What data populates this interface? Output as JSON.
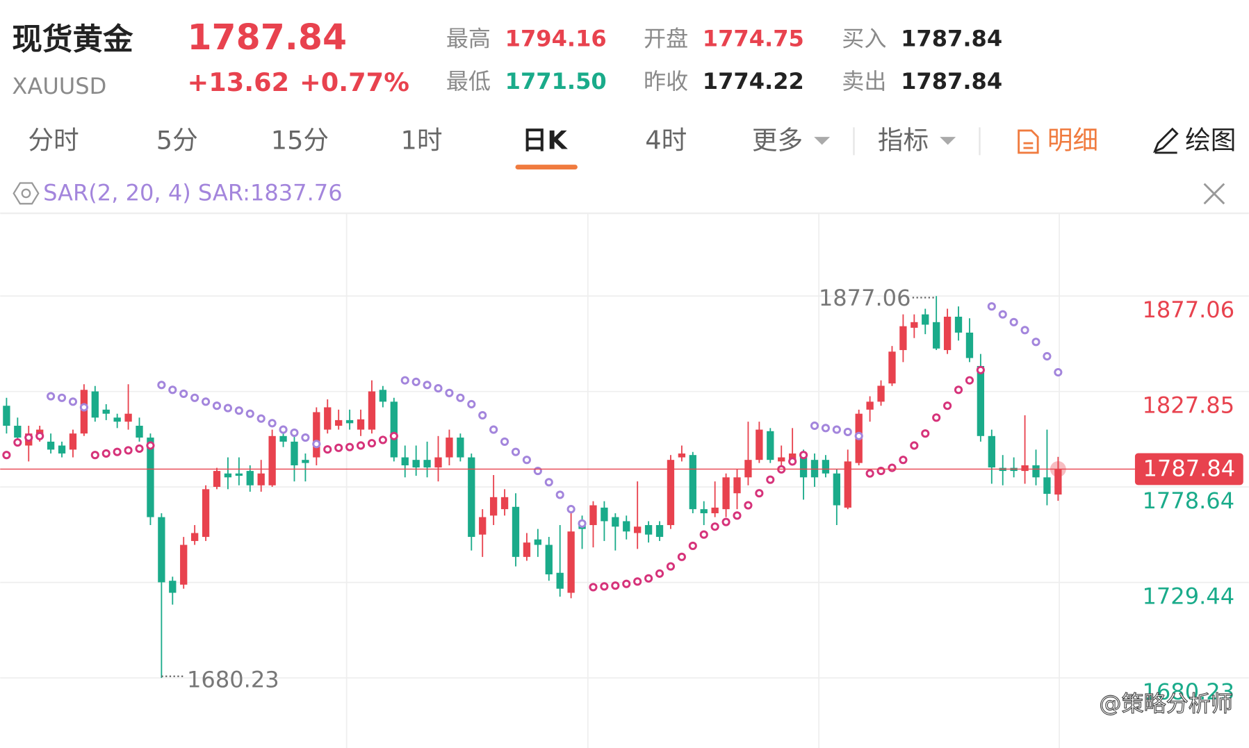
{
  "header": {
    "name": "现货黄金",
    "symbol": "XAUUSD",
    "price": "1787.84",
    "change": "+13.62",
    "change_pct": "+0.77%",
    "stats": [
      {
        "label": "最高",
        "value": "1794.16"
      },
      {
        "label": "最低",
        "value": "1771.50"
      },
      {
        "label": "开盘",
        "value": "1774.75"
      },
      {
        "label": "昨收",
        "value": "1774.22"
      },
      {
        "label": "买入",
        "value": "1787.84"
      },
      {
        "label": "卖出",
        "value": "1787.84"
      }
    ]
  },
  "tabs": [
    "分时",
    "5分",
    "15分",
    "1时",
    "日K",
    "4时",
    "更多",
    "指标",
    "明细",
    "绘图"
  ],
  "indicator": "SAR(2, 20, 4) SAR:1837.76",
  "watermark": "@策略分析师",
  "chart_data": {
    "type": "candlestick",
    "open": [
      1820.5,
      1810.2,
      1800.0,
      1804.1,
      1802.0,
      1800.0,
      1797.9,
      1806.2,
      1827.9,
      1818.5,
      1814.4,
      1812.3,
      1810.2,
      1804.1,
      1763.1,
      1730.3,
      1728.3,
      1750.8,
      1752.9,
      1778.7,
      1785.6,
      1785.6,
      1786.9,
      1779.5,
      1779.5,
      1804.9,
      1802.0,
      1792.6,
      1793.9,
      1808.2,
      1810.2,
      1813.1,
      1808.2,
      1808.2,
      1828.7,
      1822.6,
      1793.9,
      1792.6,
      1792.6,
      1788.7,
      1793.9,
      1804.1,
      1793.9,
      1754.1,
      1763.9,
      1767.2,
      1768.4,
      1742.6,
      1751.6,
      1748.8,
      1734.4,
      1724.1,
      1761.0,
      1759.0,
      1768.0,
      1763.1,
      1761.0,
      1754.9,
      1759.0,
      1759.0,
      1759.0,
      1793.9,
      1795.1,
      1767.2,
      1765.1,
      1767.2,
      1775.4,
      1783.6,
      1792.6,
      1807.4,
      1791.8,
      1792.6,
      1795.9,
      1792.6,
      1792.6,
      1785.6,
      1768.0,
      1791.0,
      1818.5,
      1822.6,
      1832.0,
      1849.2,
      1860.7,
      1867.6,
      1863.6,
      1849.2,
      1866.4,
      1858.2,
      1841.0,
      1804.9,
      1788.5,
      1788.5,
      1786.9,
      1789.8,
      1783.6,
      1774.75
    ],
    "high": [
      1824.6,
      1814.4,
      1810.2,
      1810.2,
      1806.2,
      1802.0,
      1808.2,
      1831.6,
      1830.7,
      1821.3,
      1816.4,
      1831.6,
      1814.4,
      1806.2,
      1765.1,
      1732.4,
      1752.9,
      1759.0,
      1779.5,
      1788.5,
      1793.9,
      1793.9,
      1789.8,
      1792.6,
      1808.2,
      1810.2,
      1806.2,
      1795.9,
      1819.7,
      1823.8,
      1818.5,
      1818.5,
      1818.5,
      1833.6,
      1830.7,
      1824.6,
      1800.0,
      1800.0,
      1802.0,
      1804.9,
      1808.2,
      1806.2,
      1795.9,
      1767.2,
      1784.8,
      1777.5,
      1775.4,
      1754.9,
      1757.0,
      1752.9,
      1759.0,
      1767.2,
      1763.9,
      1771.3,
      1771.3,
      1765.1,
      1763.9,
      1781.5,
      1761.0,
      1761.0,
      1795.1,
      1800.0,
      1796.7,
      1771.3,
      1781.5,
      1785.6,
      1787.7,
      1812.3,
      1812.3,
      1809.0,
      1800.0,
      1809.0,
      1797.9,
      1795.9,
      1795.1,
      1787.7,
      1797.9,
      1818.5,
      1825.4,
      1833.6,
      1851.3,
      1867.6,
      1867.6,
      1870.5,
      1877.06,
      1870.5,
      1871.7,
      1865.6,
      1847.2,
      1808.2,
      1795.1,
      1793.9,
      1815.6,
      1797.9,
      1808.2,
      1794.16
    ],
    "low": [
      1806.2,
      1802.0,
      1791.8,
      1802.0,
      1795.9,
      1793.9,
      1793.9,
      1804.9,
      1812.3,
      1813.1,
      1809.0,
      1808.2,
      1802.0,
      1759.0,
      1680.23,
      1718.0,
      1726.2,
      1748.8,
      1750.8,
      1777.5,
      1777.5,
      1779.5,
      1776.2,
      1776.2,
      1778.7,
      1799.2,
      1781.5,
      1781.5,
      1789.8,
      1806.2,
      1808.2,
      1808.2,
      1804.9,
      1806.2,
      1819.7,
      1791.8,
      1783.6,
      1784.4,
      1783.6,
      1781.5,
      1789.8,
      1791.8,
      1745.9,
      1742.6,
      1759.0,
      1763.9,
      1737.7,
      1740.6,
      1742.6,
      1730.3,
      1722.1,
      1721.3,
      1746.7,
      1747.5,
      1750.8,
      1745.9,
      1751.6,
      1746.7,
      1750.0,
      1750.8,
      1757.0,
      1791.8,
      1765.1,
      1759.0,
      1763.1,
      1763.1,
      1767.2,
      1779.5,
      1791.0,
      1791.0,
      1788.5,
      1789.8,
      1772.1,
      1778.7,
      1783.6,
      1759.0,
      1767.2,
      1789.8,
      1812.3,
      1820.5,
      1830.7,
      1843.0,
      1855.4,
      1857.4,
      1849.2,
      1847.2,
      1854.1,
      1843.0,
      1802.0,
      1780.3,
      1779.5,
      1783.6,
      1780.3,
      1779.5,
      1769.2,
      1771.5
    ],
    "close": [
      1810.2,
      1804.1,
      1806.2,
      1808.2,
      1797.9,
      1795.9,
      1806.2,
      1828.7,
      1814.4,
      1816.4,
      1812.3,
      1816.4,
      1804.1,
      1763.1,
      1729.5,
      1724.1,
      1748.8,
      1754.9,
      1777.5,
      1786.9,
      1783.6,
      1784.4,
      1779.5,
      1785.6,
      1804.9,
      1802.0,
      1789.8,
      1791.0,
      1817.2,
      1819.7,
      1813.1,
      1811.5,
      1813.5,
      1827.9,
      1822.6,
      1793.9,
      1789.8,
      1788.7,
      1788.7,
      1793.9,
      1804.1,
      1793.9,
      1752.9,
      1763.1,
      1773.4,
      1773.4,
      1742.6,
      1750.0,
      1748.8,
      1733.6,
      1726.2,
      1755.7,
      1757.0,
      1769.2,
      1761.0,
      1758.2,
      1755.7,
      1758.2,
      1754.1,
      1752.9,
      1792.6,
      1795.9,
      1767.2,
      1765.1,
      1768.0,
      1783.6,
      1783.6,
      1792.6,
      1808.2,
      1792.6,
      1793.9,
      1795.9,
      1783.6,
      1783.6,
      1785.6,
      1769.2,
      1791.8,
      1816.4,
      1822.6,
      1830.8,
      1848.4,
      1861.5,
      1863.6,
      1862.3,
      1850.0,
      1866.4,
      1858.2,
      1845.1,
      1804.9,
      1788.7,
      1786.9,
      1786.9,
      1789.8,
      1783.6,
      1775.1,
      1787.84
    ],
    "sar_rising": [
      1795.1,
      1801.6,
      1804.1,
      1804.9,
      null,
      null,
      null,
      null,
      1795.1,
      1795.9,
      1796.7,
      1797.5,
      1798.4,
      1800.0,
      null,
      null,
      null,
      null,
      null,
      null,
      null,
      null,
      null,
      null,
      null,
      null,
      null,
      null,
      null,
      1798.0,
      1798.8,
      1799.2,
      1800.0,
      1801.2,
      1802.9,
      1804.9,
      null,
      null,
      null,
      null,
      null,
      null,
      null,
      null,
      null,
      null,
      null,
      null,
      null,
      null,
      null,
      null,
      null,
      1727.0,
      1727.4,
      1727.8,
      1728.7,
      1729.9,
      1731.5,
      1734.0,
      1737.7,
      1742.6,
      1748.3,
      1754.1,
      1758.2,
      1760.6,
      1763.9,
      1769.2,
      1775.4,
      1782.4,
      1787.7,
      1791.8,
      1795.1,
      null,
      null,
      null,
      null,
      null,
      1785.6,
      1786.9,
      1788.5,
      1792.6,
      1800.0,
      1806.2,
      1814.4,
      1820.5,
      1828.7,
      1833.6,
      1838.9,
      null,
      null,
      null,
      null,
      null,
      null,
      null
    ],
    "sar_falling": [
      null,
      null,
      null,
      null,
      1825.4,
      1824.6,
      1822.6,
      1819.7,
      null,
      null,
      null,
      null,
      null,
      null,
      1831.2,
      1828.7,
      1826.7,
      1824.6,
      1822.6,
      1820.5,
      1819.3,
      1818.0,
      1816.4,
      1813.9,
      1811.5,
      1808.2,
      1806.6,
      1804.1,
      1800.8,
      null,
      null,
      null,
      null,
      null,
      null,
      null,
      1833.6,
      1832.8,
      1831.2,
      1829.5,
      1827.1,
      1824.6,
      1821.3,
      1815.6,
      1808.2,
      1802.0,
      1796.7,
      1792.6,
      1786.9,
      1781.1,
      1774.6,
      1767.2,
      1759.8,
      null,
      null,
      null,
      null,
      null,
      null,
      null,
      null,
      null,
      null,
      null,
      null,
      null,
      null,
      null,
      null,
      null,
      null,
      null,
      null,
      1810.2,
      1809.0,
      1808.2,
      1807.0,
      1804.9,
      null,
      null,
      null,
      null,
      null,
      null,
      null,
      null,
      null,
      null,
      null,
      1871.7,
      1867.6,
      1863.6,
      1859.5,
      1853.4,
      1846.0,
      1837.76
    ],
    "ylim": [
      1644.1,
      1918.9
    ],
    "yticks": [
      1680.23,
      1729.44,
      1778.64,
      1827.85,
      1877.06
    ],
    "grid": true,
    "up_color": "#e8424e",
    "down_color": "#1aab8a",
    "sar_rising_color": "#d6337a",
    "sar_falling_color": "#a385dc"
  }
}
